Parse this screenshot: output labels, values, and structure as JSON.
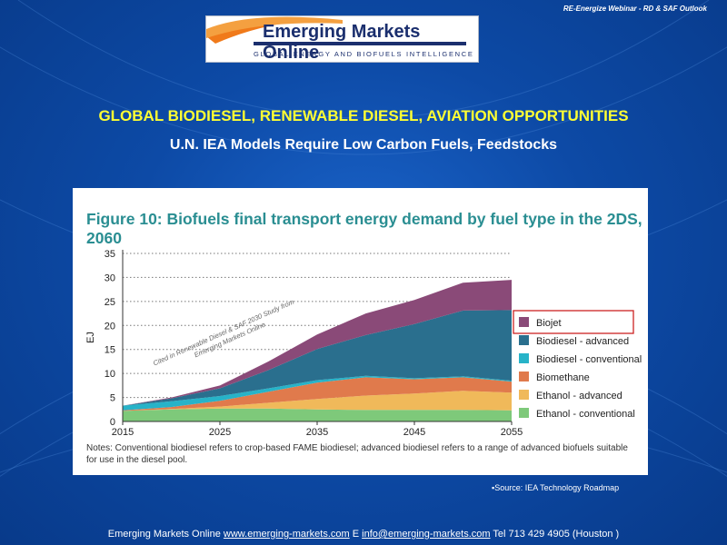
{
  "header_note": "RE-Energize Webinar - RD & SAF Outlook",
  "logo": {
    "title": "Emerging Markets Online",
    "subtitle": "GLOBAL ENERGY AND BIOFUELS INTELLIGENCE"
  },
  "slide_title": "GLOBAL BIODIESEL, RENEWABLE DIESEL, AVIATION OPPORTUNITIES",
  "slide_subtitle": "U.N. IEA Models Require Low Carbon Fuels, Feedstocks",
  "watermark": {
    "line1": "Cited in Renewable Diesel & SAF 2030 Study from",
    "line2": "Emerging Markets Online"
  },
  "notes": "Notes: Conventional biodiesel refers to crop-based FAME biodiesel; advanced biodiesel refers to a range of advanced biofuels suitable for use in the diesel pool.",
  "source": "Source: IEA Technology Roadmap",
  "footer": {
    "company": "Emerging Markets Online",
    "website": "www.emerging-markets.com",
    "email_prefix": "E",
    "email": "info@emerging-markets.com",
    "phone": "Tel 713 429 4905 (Houston )"
  },
  "colors": {
    "ethanol_conventional": "#7ec97a",
    "ethanol_advanced": "#f0b95a",
    "biomethane": "#e07a4c",
    "biodiesel_conventional": "#27b3c8",
    "biodiesel_advanced": "#2a6f8e",
    "biojet": "#8a4a78",
    "title_teal": "#2a8e92",
    "legend_box_red": "#cc2222"
  },
  "chart_data": {
    "type": "area",
    "title": "Figure 10: Biofuels final transport energy demand by fuel type in the 2DS, 2060",
    "xlabel": "",
    "ylabel": "EJ",
    "x": [
      2015,
      2020,
      2025,
      2030,
      2035,
      2040,
      2045,
      2050,
      2055
    ],
    "xticks": [
      2015,
      2025,
      2035,
      2045,
      2055
    ],
    "yticks": [
      0,
      5,
      10,
      15,
      20,
      25,
      30,
      35
    ],
    "xlim": [
      2015,
      2055
    ],
    "ylim": [
      0,
      35
    ],
    "grid": "horizontal dotted",
    "legend_position": "right",
    "stacked": true,
    "series": [
      {
        "name": "Ethanol - conventional",
        "values": [
          2.2,
          2.5,
          2.7,
          2.7,
          2.5,
          2.4,
          2.4,
          2.4,
          2.3
        ]
      },
      {
        "name": "Ethanol - advanced",
        "values": [
          0.0,
          0.1,
          0.4,
          1.2,
          2.2,
          3.0,
          3.4,
          4.0,
          3.7
        ]
      },
      {
        "name": "Biomethane",
        "values": [
          0.1,
          0.4,
          1.2,
          2.3,
          3.4,
          3.8,
          3.0,
          2.8,
          2.3
        ]
      },
      {
        "name": "Biodiesel - conventional",
        "values": [
          1.0,
          1.2,
          1.0,
          0.7,
          0.5,
          0.3,
          0.2,
          0.2,
          0.2
        ]
      },
      {
        "name": "Biodiesel - advanced",
        "values": [
          0.0,
          0.6,
          1.6,
          3.8,
          6.5,
          8.5,
          11.3,
          13.7,
          14.7
        ]
      },
      {
        "name": "Biojet",
        "values": [
          0.0,
          0.2,
          0.6,
          1.8,
          3.0,
          4.5,
          5.0,
          5.8,
          6.3
        ]
      }
    ],
    "legend_order": [
      "Biojet",
      "Biodiesel - advanced",
      "Biodiesel - conventional",
      "Biomethane",
      "Ethanol - advanced",
      "Ethanol - conventional"
    ],
    "highlighted_legend_entry": "Biojet"
  }
}
